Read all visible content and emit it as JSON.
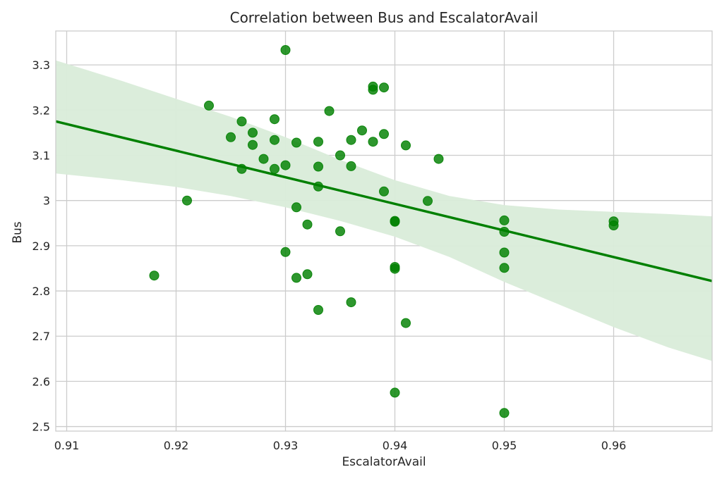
{
  "chart_data": {
    "type": "scatter",
    "title": "Correlation between Bus and EscalatorAvail",
    "xlabel": "EscalatorAvail",
    "ylabel": "Bus",
    "xlim": [
      0.909,
      0.969
    ],
    "ylim": [
      2.49,
      3.375
    ],
    "x_ticks": [
      0.91,
      0.92,
      0.93,
      0.94,
      0.95,
      0.96
    ],
    "x_tick_labels": [
      "0.91",
      "0.92",
      "0.93",
      "0.94",
      "0.95",
      "0.96"
    ],
    "y_ticks": [
      2.5,
      2.6,
      2.7,
      2.8,
      2.9,
      3.0,
      3.1,
      3.2,
      3.3
    ],
    "y_tick_labels": [
      "2.5",
      "2.6",
      "2.7",
      "2.8",
      "2.9",
      "3",
      "3.1",
      "3.2",
      "3.3"
    ],
    "grid": true,
    "colors": {
      "points": "#008000",
      "regression_line": "#008000",
      "confidence_band": "#d9ecd9"
    },
    "regression_line": {
      "x": [
        0.909,
        0.969
      ],
      "y": [
        3.175,
        2.822
      ]
    },
    "confidence_band": {
      "x": [
        0.909,
        0.915,
        0.92,
        0.925,
        0.93,
        0.935,
        0.94,
        0.945,
        0.95,
        0.955,
        0.96,
        0.965,
        0.969
      ],
      "upper": [
        3.31,
        3.265,
        3.225,
        3.185,
        3.14,
        3.09,
        3.045,
        3.01,
        2.99,
        2.98,
        2.975,
        2.97,
        2.965
      ],
      "lower": [
        3.06,
        3.045,
        3.03,
        3.01,
        2.985,
        2.955,
        2.92,
        2.875,
        2.82,
        2.77,
        2.72,
        2.675,
        2.645
      ]
    },
    "points": {
      "x": [
        0.918,
        0.921,
        0.923,
        0.925,
        0.926,
        0.926,
        0.927,
        0.927,
        0.928,
        0.929,
        0.929,
        0.929,
        0.93,
        0.93,
        0.93,
        0.931,
        0.931,
        0.931,
        0.932,
        0.932,
        0.933,
        0.933,
        0.933,
        0.933,
        0.934,
        0.935,
        0.935,
        0.936,
        0.936,
        0.936,
        0.937,
        0.938,
        0.938,
        0.938,
        0.939,
        0.939,
        0.939,
        0.94,
        0.94,
        0.94,
        0.94,
        0.94,
        0.941,
        0.941,
        0.943,
        0.944,
        0.95,
        0.95,
        0.95,
        0.95,
        0.95,
        0.96,
        0.96
      ],
      "y": [
        2.834,
        3.0,
        3.21,
        3.14,
        3.175,
        3.07,
        3.15,
        3.123,
        3.092,
        3.18,
        3.134,
        3.07,
        3.333,
        3.078,
        2.886,
        3.128,
        2.985,
        2.829,
        2.947,
        2.837,
        3.13,
        3.075,
        3.031,
        2.758,
        3.198,
        3.1,
        2.932,
        3.134,
        3.076,
        2.775,
        3.155,
        3.252,
        3.245,
        3.13,
        3.25,
        3.147,
        3.02,
        2.955,
        2.953,
        2.853,
        2.849,
        2.575,
        3.122,
        2.729,
        2.999,
        3.092,
        2.956,
        2.931,
        2.885,
        2.851,
        2.53,
        2.954,
        2.945
      ]
    }
  }
}
